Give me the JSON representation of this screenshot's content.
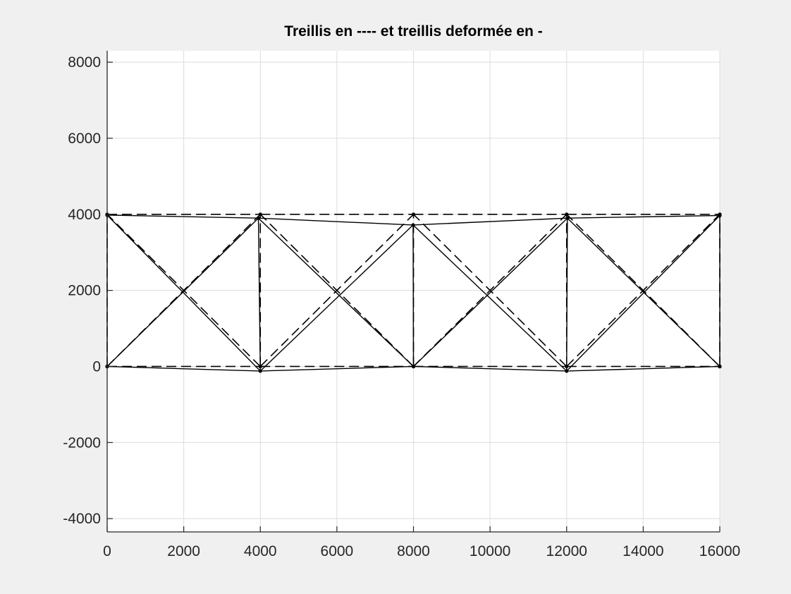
{
  "chart_data": {
    "type": "line",
    "title": "Treillis en ---- et treillis deformée en -",
    "xlabel": "",
    "ylabel": "",
    "xlim": [
      0,
      16000
    ],
    "ylim": [
      -4350,
      8300
    ],
    "xticks": [
      0,
      2000,
      4000,
      6000,
      8000,
      10000,
      12000,
      14000,
      16000
    ],
    "yticks": [
      -4000,
      -2000,
      0,
      2000,
      4000,
      6000,
      8000
    ],
    "xtick_labels": [
      "0",
      "2000",
      "4000",
      "6000",
      "8000",
      "10000",
      "12000",
      "14000",
      "16000"
    ],
    "ytick_labels": [
      "-4000",
      "-2000",
      "0",
      "2000",
      "4000",
      "6000",
      "8000"
    ],
    "grid": true,
    "legend": null,
    "series": [
      {
        "style": "dashed",
        "color": "#000000",
        "nodes": [
          [
            0,
            0
          ],
          [
            4000,
            0
          ],
          [
            8000,
            0
          ],
          [
            12000,
            0
          ],
          [
            16000,
            0
          ],
          [
            0,
            4000
          ],
          [
            4000,
            4000
          ],
          [
            8000,
            4000
          ],
          [
            12000,
            4000
          ],
          [
            16000,
            4000
          ]
        ],
        "members": [
          [
            0,
            1
          ],
          [
            1,
            2
          ],
          [
            2,
            3
          ],
          [
            3,
            4
          ],
          [
            5,
            6
          ],
          [
            6,
            7
          ],
          [
            7,
            8
          ],
          [
            8,
            9
          ],
          [
            0,
            5
          ],
          [
            1,
            6
          ],
          [
            2,
            7
          ],
          [
            3,
            8
          ],
          [
            4,
            9
          ],
          [
            0,
            6
          ],
          [
            1,
            5
          ],
          [
            1,
            7
          ],
          [
            2,
            6
          ],
          [
            2,
            8
          ],
          [
            3,
            7
          ],
          [
            3,
            9
          ],
          [
            4,
            8
          ]
        ]
      },
      {
        "style": "solid",
        "color": "#000000",
        "nodes": [
          [
            0,
            0
          ],
          [
            4000,
            -120
          ],
          [
            8000,
            0
          ],
          [
            12000,
            -120
          ],
          [
            16000,
            0
          ],
          [
            0,
            3980
          ],
          [
            3950,
            3900
          ],
          [
            7990,
            3720
          ],
          [
            12020,
            3900
          ],
          [
            16000,
            3970
          ]
        ],
        "members": [
          [
            0,
            1
          ],
          [
            1,
            2
          ],
          [
            2,
            3
          ],
          [
            3,
            4
          ],
          [
            5,
            6
          ],
          [
            6,
            7
          ],
          [
            7,
            8
          ],
          [
            8,
            9
          ],
          [
            0,
            5
          ],
          [
            1,
            6
          ],
          [
            2,
            7
          ],
          [
            3,
            8
          ],
          [
            4,
            9
          ],
          [
            0,
            6
          ],
          [
            1,
            5
          ],
          [
            1,
            7
          ],
          [
            2,
            6
          ],
          [
            2,
            8
          ],
          [
            3,
            7
          ],
          [
            3,
            9
          ],
          [
            4,
            8
          ]
        ]
      }
    ]
  }
}
